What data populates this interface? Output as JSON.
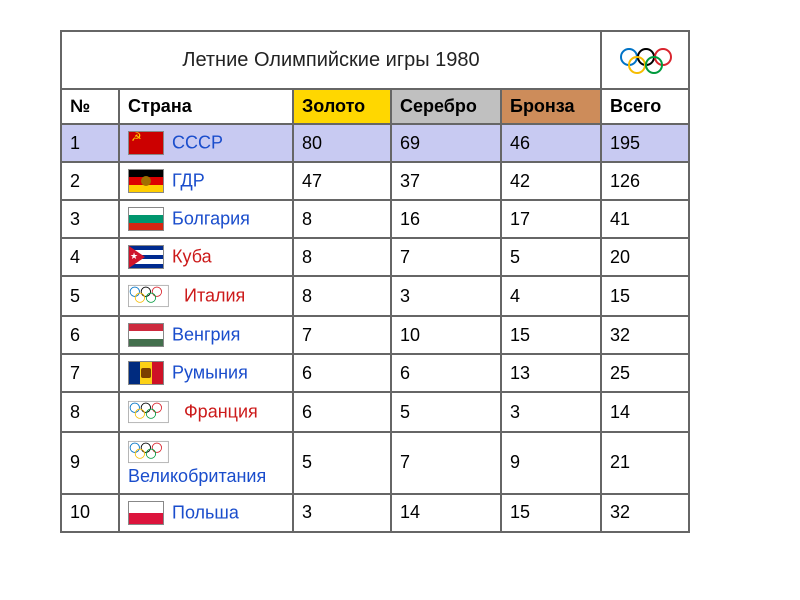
{
  "title": "Летние Олимпийские игры 1980",
  "columns": {
    "rank": "№",
    "country": "Страна",
    "gold": "Золото",
    "silver": "Серебро",
    "bronze": "Бронза",
    "total": "Всего"
  },
  "header_colors": {
    "gold": "#ffd700",
    "silver": "#c0c0c0",
    "bronze": "#cd8c5a"
  },
  "highlight_color": "#c8caf2",
  "link_color": "#1a4dcc",
  "link_color_red": "#cc1a1a",
  "rows": [
    {
      "rank": "1",
      "country": "СССР",
      "gold": "80",
      "silver": "69",
      "bronze": "46",
      "total": "195",
      "highlight": true,
      "flag": "ussr",
      "red_link": false
    },
    {
      "rank": "2",
      "country": "ГДР",
      "gold": "47",
      "silver": "37",
      "bronze": "42",
      "total": "126",
      "flag": "gdr",
      "red_link": false
    },
    {
      "rank": "3",
      "country": "Болгария",
      "gold": "8",
      "silver": "16",
      "bronze": "17",
      "total": "41",
      "flag": "bulgaria",
      "red_link": false
    },
    {
      "rank": "4",
      "country": "Куба",
      "gold": "8",
      "silver": "7",
      "bronze": "5",
      "total": "20",
      "flag": "cuba",
      "red_link": true
    },
    {
      "rank": "5",
      "country": "Италия",
      "gold": "8",
      "silver": "3",
      "bronze": "4",
      "total": "15",
      "flag": "olympic",
      "red_link": true
    },
    {
      "rank": "6",
      "country": "Венгрия",
      "gold": "7",
      "silver": "10",
      "bronze": "15",
      "total": "32",
      "flag": "hungary",
      "red_link": false
    },
    {
      "rank": "7",
      "country": "Румыния",
      "gold": "6",
      "silver": "6",
      "bronze": "13",
      "total": "25",
      "flag": "romania",
      "red_link": false
    },
    {
      "rank": "8",
      "country": "Франция",
      "gold": "6",
      "silver": "5",
      "bronze": "3",
      "total": "14",
      "flag": "olympic",
      "red_link": true
    },
    {
      "rank": "9",
      "country": "Великобритания",
      "gold": "5",
      "silver": "7",
      "bronze": "9",
      "total": "21",
      "flag": "olympic",
      "red_link": false
    },
    {
      "rank": "10",
      "country": "Польша",
      "gold": "3",
      "silver": "14",
      "bronze": "15",
      "total": "32",
      "flag": "poland",
      "red_link": false
    }
  ],
  "flags": {
    "ussr": {
      "type": "solid-star",
      "bg": "#cc0000",
      "star": "#ffcc00"
    },
    "gdr": {
      "type": "tri-h",
      "c1": "#000000",
      "c2": "#dd0000",
      "c3": "#ffce00",
      "emblem": "#a07000"
    },
    "bulgaria": {
      "type": "tri-h",
      "c1": "#ffffff",
      "c2": "#00966e",
      "c3": "#d62612"
    },
    "cuba": {
      "type": "cuba"
    },
    "hungary": {
      "type": "tri-h",
      "c1": "#cd2a3e",
      "c2": "#ffffff",
      "c3": "#436f4d"
    },
    "romania": {
      "type": "tri-v",
      "c1": "#002b7f",
      "c2": "#fcd116",
      "c3": "#ce1126",
      "emblem": "#7b3f00"
    },
    "poland": {
      "type": "bi-h",
      "c1": "#ffffff",
      "c2": "#dc143c"
    },
    "olympic": {
      "type": "olympic"
    }
  }
}
